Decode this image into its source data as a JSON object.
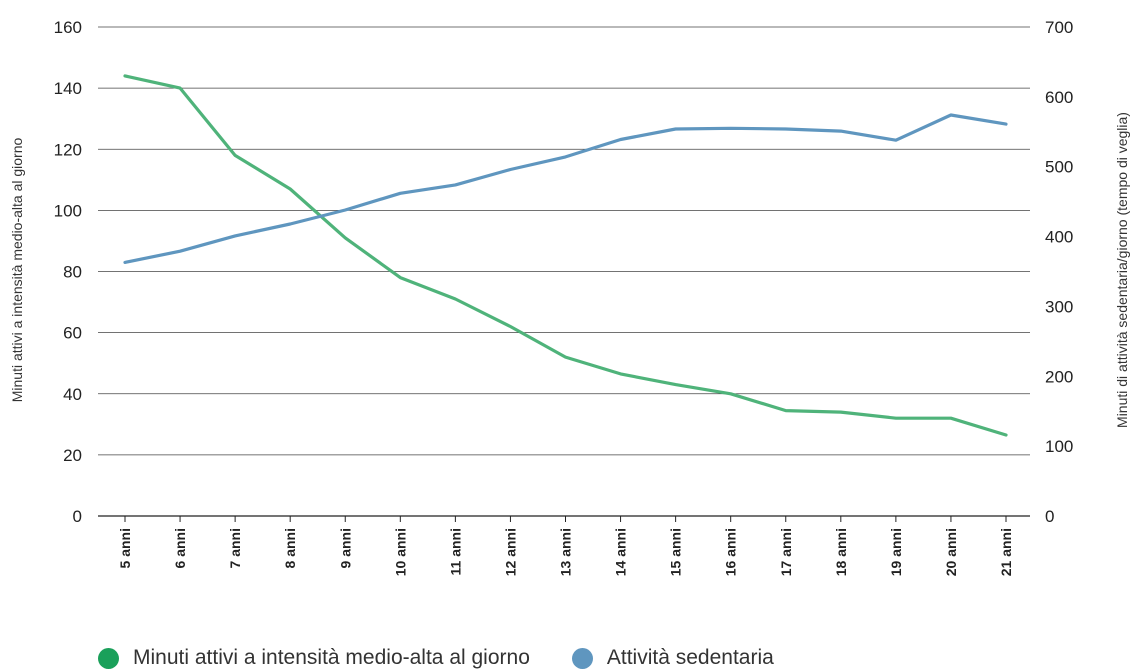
{
  "chart_data": {
    "type": "line",
    "categories": [
      "5 anni",
      "6 anni",
      "7 anni",
      "8 anni",
      "9 anni",
      "10 anni",
      "11 anni",
      "12 anni",
      "13 anni",
      "14 anni",
      "15 anni",
      "16 anni",
      "17 anni",
      "18 anni",
      "19 anni",
      "20 anni",
      "21 anni"
    ],
    "ylabel_left": "Minuti attivi a intensità medio-alta al giorno",
    "ylabel_right": "Minuti di attività sedentaria/giorno (tempo di veglia)",
    "ylim_left": [
      0,
      160
    ],
    "ylim_right": [
      0,
      700
    ],
    "yticks_left": [
      0,
      20,
      40,
      60,
      80,
      100,
      120,
      140,
      160
    ],
    "yticks_right": [
      0,
      100,
      200,
      300,
      400,
      500,
      600,
      700
    ],
    "grid": true,
    "legend_position": "bottom",
    "series": [
      {
        "name": "Minuti attivi a intensità medio-alta al giorno",
        "axis": "left",
        "color": "#4fb37a",
        "values": [
          144,
          140,
          118,
          107,
          91,
          78,
          71,
          62,
          52,
          46.5,
          43,
          40,
          34.5,
          34,
          32,
          32,
          26.5
        ]
      },
      {
        "name": "Attività sedentaria",
        "axis": "right",
        "color": "#5f96bf",
        "values": [
          363,
          379,
          401,
          418,
          438,
          462,
          474,
          496,
          514,
          539,
          554,
          555,
          554,
          551,
          538,
          574,
          561
        ]
      }
    ]
  },
  "legend": {
    "items": [
      {
        "label": "Minuti attivi a intensità medio-alta al giorno",
        "color": "#1aa05a"
      },
      {
        "label": "Attività sedentaria",
        "color": "#5f96bf"
      }
    ]
  }
}
